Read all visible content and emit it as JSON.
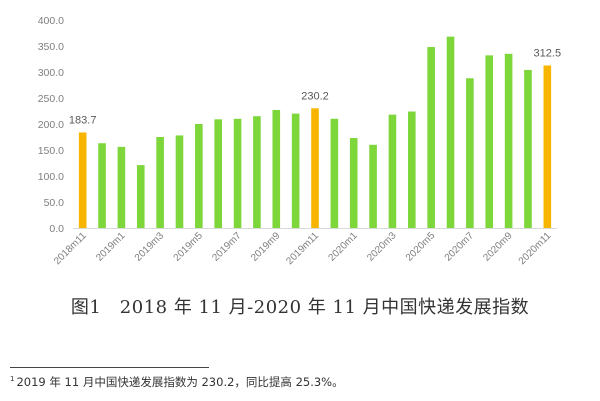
{
  "chart_data": {
    "type": "bar",
    "title": "",
    "xlabel": "",
    "ylabel": "",
    "ylim": [
      0,
      400
    ],
    "yticks": [
      "0.0",
      "50.0",
      "100.0",
      "150.0",
      "200.0",
      "250.0",
      "300.0",
      "350.0",
      "400.0"
    ],
    "categories": [
      "2018m11",
      "2018m12",
      "2019m1",
      "2019m2",
      "2019m3",
      "2019m4",
      "2019m5",
      "2019m6",
      "2019m7",
      "2019m8",
      "2019m9",
      "2019m10",
      "2019m11",
      "2019m12",
      "2020m1",
      "2020m2",
      "2020m3",
      "2020m4",
      "2020m5",
      "2020m6",
      "2020m7",
      "2020m8",
      "2020m9",
      "2020m10",
      "2020m11"
    ],
    "values": [
      183.7,
      163,
      156,
      121,
      175,
      178,
      200,
      209,
      210,
      215,
      227,
      220,
      230.2,
      210,
      173,
      160,
      218,
      224,
      348,
      368,
      288,
      332,
      335,
      304,
      312.5
    ],
    "shown_tick_labels": [
      "2018m11",
      "2019m1",
      "2019m3",
      "2019m5",
      "2019m7",
      "2019m9",
      "2019m11",
      "2020m1",
      "2020m3",
      "2020m5",
      "2020m7",
      "2020m9",
      "2020m11"
    ],
    "highlighted": [
      "2018m11",
      "2019m11",
      "2020m11"
    ],
    "data_labels": [
      {
        "category": "2018m11",
        "text": "183.7"
      },
      {
        "category": "2019m11",
        "text": "230.2"
      },
      {
        "category": "2020m11",
        "text": "312.5"
      }
    ],
    "colors": {
      "normal": "#7dd63a",
      "highlight": "#f7b500",
      "axis": "#d9d9d9"
    }
  },
  "caption": "图1　2018 年 11 月-2020 年 11 月中国快递发展指数",
  "footnote": {
    "marker": "1",
    "text": "2019 年 11 月中国快递发展指数为 230.2，同比提高 25.3%。"
  }
}
